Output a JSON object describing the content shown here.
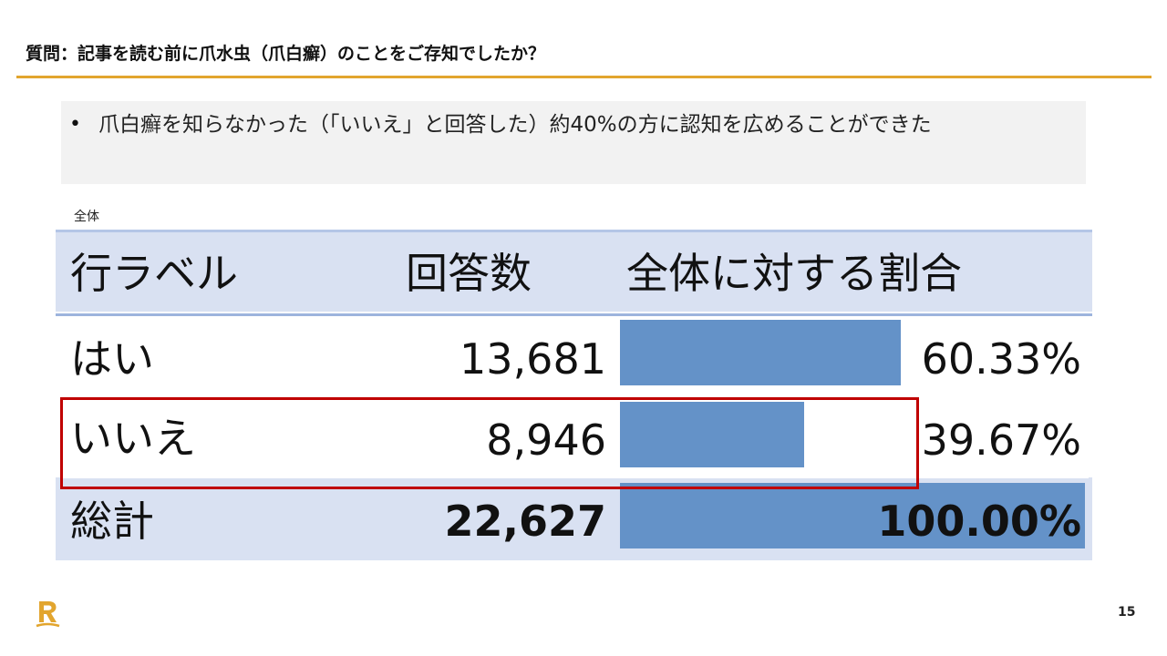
{
  "title": "質問：記事を読む前に爪水虫（爪白癬）のことをご存知でしたか？",
  "note": {
    "bullet": "•",
    "text": "爪白癬を知らなかった（「いいえ」と回答した）約40%の方に認知を広めることができた"
  },
  "table_caption": "全体",
  "table": {
    "headers": {
      "label": "行ラベル",
      "count": "回答数",
      "share": "全体に対する割合"
    },
    "rows": [
      {
        "label": "はい",
        "count": "13,681",
        "percent": "60.33%",
        "fraction": 0.6033
      },
      {
        "label": "いいえ",
        "count": "8,946",
        "percent": "39.67%",
        "fraction": 0.3967
      }
    ],
    "total": {
      "label": "総計",
      "count": "22,627",
      "percent": "100.00%",
      "fraction": 1.0
    }
  },
  "colors": {
    "accent": "#e2a52e",
    "bar": "#6492c8",
    "header_bg": "#d9e1f2",
    "highlight": "#c00000"
  },
  "logo_icon": "rakuten-r-icon",
  "page_number": "15"
}
